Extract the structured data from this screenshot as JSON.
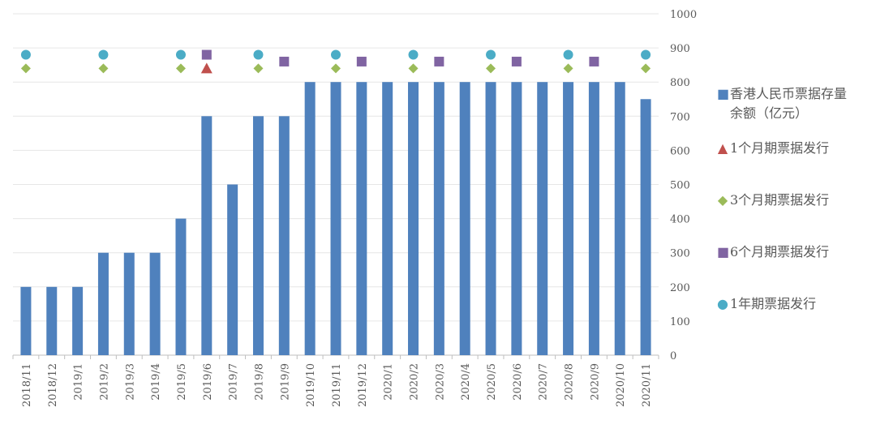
{
  "chart_data": {
    "type": "bar",
    "categories": [
      "2018/11",
      "2018/12",
      "2019/1",
      "2019/2",
      "2019/3",
      "2019/4",
      "2019/5",
      "2019/6",
      "2019/7",
      "2019/8",
      "2019/9",
      "2019/10",
      "2019/11",
      "2019/12",
      "2020/1",
      "2020/2",
      "2020/3",
      "2020/4",
      "2020/5",
      "2020/6",
      "2020/7",
      "2020/8",
      "2020/9",
      "2020/10",
      "2020/11"
    ],
    "series": [
      {
        "name": "香港人民币票据存量余额（亿元）",
        "type": "bar",
        "color": "#4f81bd",
        "values": [
          200,
          200,
          200,
          300,
          300,
          300,
          400,
          700,
          500,
          700,
          700,
          800,
          800,
          800,
          800,
          800,
          800,
          800,
          800,
          800,
          800,
          800,
          800,
          800,
          750
        ]
      },
      {
        "name": "1个月期票据发行",
        "type": "scatter",
        "marker": "triangle",
        "color": "#c0504d",
        "points": [
          {
            "x": "2019/6",
            "y": 840
          }
        ]
      },
      {
        "name": "3个月期票据发行",
        "type": "scatter",
        "marker": "diamond",
        "color": "#9bbb59",
        "points": [
          {
            "x": "2018/11",
            "y": 840
          },
          {
            "x": "2019/2",
            "y": 840
          },
          {
            "x": "2019/5",
            "y": 840
          },
          {
            "x": "2019/8",
            "y": 840
          },
          {
            "x": "2019/11",
            "y": 840
          },
          {
            "x": "2020/2",
            "y": 840
          },
          {
            "x": "2020/5",
            "y": 840
          },
          {
            "x": "2020/8",
            "y": 840
          },
          {
            "x": "2020/11",
            "y": 840
          }
        ]
      },
      {
        "name": "6个月期票据发行",
        "type": "scatter",
        "marker": "square",
        "color": "#8064a2",
        "points": [
          {
            "x": "2019/6",
            "y": 880
          },
          {
            "x": "2019/9",
            "y": 860
          },
          {
            "x": "2019/12",
            "y": 860
          },
          {
            "x": "2020/3",
            "y": 860
          },
          {
            "x": "2020/6",
            "y": 860
          },
          {
            "x": "2020/9",
            "y": 860
          }
        ]
      },
      {
        "name": "1年期票据发行",
        "type": "scatter",
        "marker": "circle",
        "color": "#4bacc6",
        "points": [
          {
            "x": "2018/11",
            "y": 880
          },
          {
            "x": "2019/2",
            "y": 880
          },
          {
            "x": "2019/5",
            "y": 880
          },
          {
            "x": "2019/8",
            "y": 880
          },
          {
            "x": "2019/11",
            "y": 880
          },
          {
            "x": "2020/2",
            "y": 880
          },
          {
            "x": "2020/5",
            "y": 880
          },
          {
            "x": "2020/8",
            "y": 880
          },
          {
            "x": "2020/11",
            "y": 880
          }
        ]
      }
    ],
    "y_axis": {
      "position": "right",
      "ylim": [
        0,
        1000
      ],
      "ticks": [
        0,
        100,
        200,
        300,
        400,
        500,
        600,
        700,
        800,
        900,
        1000
      ]
    },
    "grid": true,
    "legend_position": "right",
    "title": "",
    "xlabel": "",
    "ylabel": ""
  },
  "legend": {
    "items": [
      {
        "label": "香港人民币票据存量",
        "label2": "余额（亿元）",
        "symbol": "■",
        "color": "#4f81bd"
      },
      {
        "label": "1个月期票据发行",
        "symbol": "▲",
        "color": "#c0504d"
      },
      {
        "label": "3个月期票据发行",
        "symbol": "◆",
        "color": "#9bbb59"
      },
      {
        "label": "6个月期票据发行",
        "symbol": "■",
        "color": "#8064a2"
      },
      {
        "label": "1年期票据发行",
        "symbol": "●",
        "color": "#4bacc6"
      }
    ]
  }
}
